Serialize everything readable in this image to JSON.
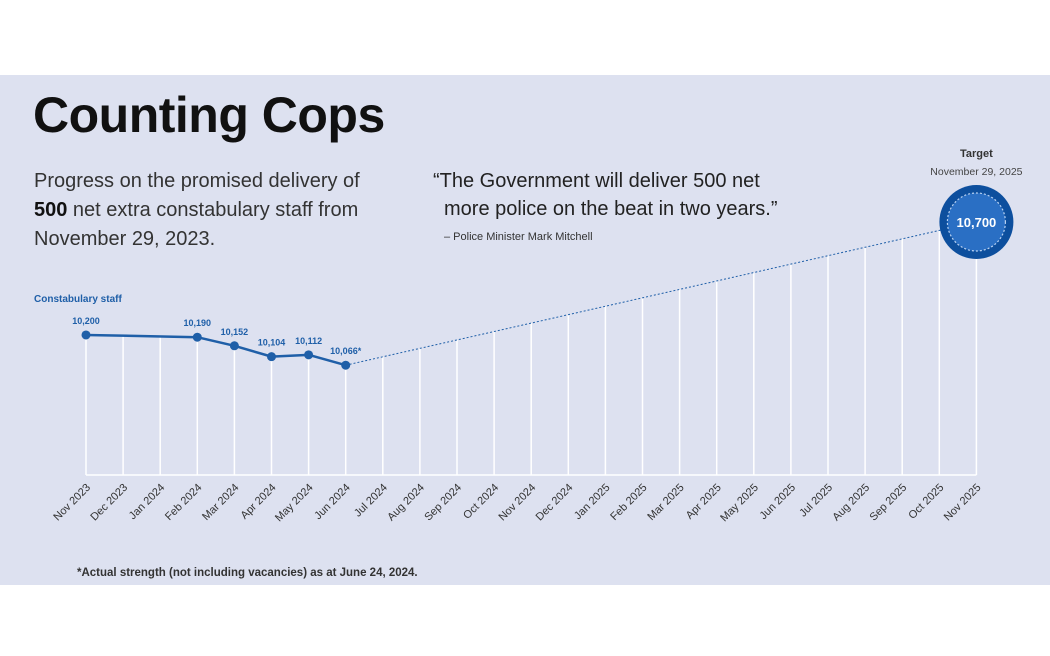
{
  "header": {
    "title": "Counting Cops",
    "subtitle_pre": "Progress on the promised delivery of ",
    "subtitle_bold": "500",
    "subtitle_post": " net extra constabulary staff from November 29, 2023."
  },
  "quote": {
    "line1": "“The Government will deliver 500 net",
    "line2": "more police on the beat in two years.”",
    "attribution": "– Police Minister Mark Mitchell"
  },
  "footnote": "*Actual strength (not including vacancies) as at June 24, 2024.",
  "colors": {
    "background": "#dde1f0",
    "accent": "#1f5fa8",
    "target_ring": "#0d4f9e",
    "gridline": "#ffffff"
  },
  "chart_data": {
    "type": "line",
    "series_label": "Constabulary staff",
    "categories": [
      "Nov 2023",
      "Dec 2023",
      "Jan 2024",
      "Feb 2024",
      "Mar 2024",
      "Apr 2024",
      "May 2024",
      "Jun 2024",
      "Jul 2024",
      "Aug 2024",
      "Sep 2024",
      "Oct 2024",
      "Nov 2024",
      "Dec 2024",
      "Jan 2025",
      "Feb 2025",
      "Mar 2025",
      "Apr 2025",
      "May 2025",
      "Jun 2025",
      "Jul 2025",
      "Aug 2025",
      "Sep 2025",
      "Oct 2025",
      "Nov 2025"
    ],
    "points": [
      {
        "index": 0,
        "value": 10200,
        "label": "10,200"
      },
      {
        "index": 3,
        "value": 10190,
        "label": "10,190"
      },
      {
        "index": 4,
        "value": 10152,
        "label": "10,152"
      },
      {
        "index": 5,
        "value": 10104,
        "label": "10,104"
      },
      {
        "index": 6,
        "value": 10112,
        "label": "10,112"
      },
      {
        "index": 7,
        "value": 10066,
        "label": "10,066*"
      }
    ],
    "target": {
      "index": 24,
      "value": 10700,
      "label": "10,700",
      "title": "Target",
      "date": "November 29, 2025"
    },
    "projection": "dotted",
    "ylim": [
      9580,
      10700
    ]
  }
}
